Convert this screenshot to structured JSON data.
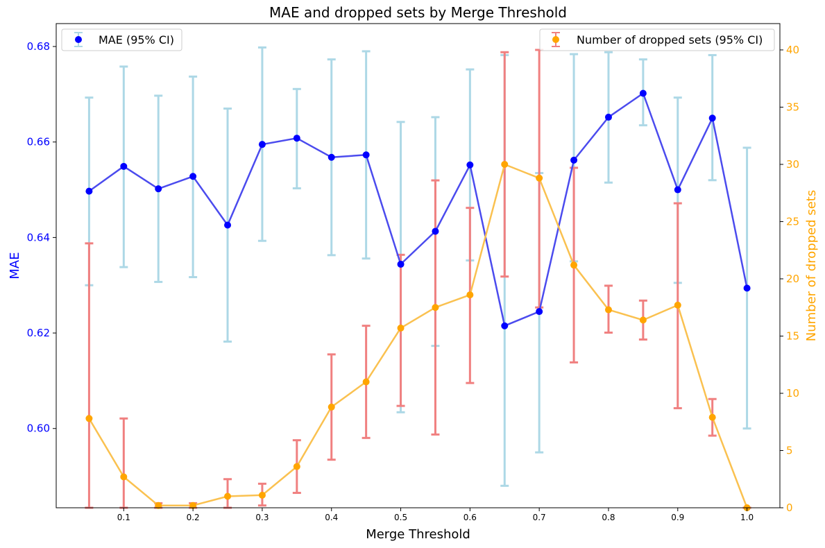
{
  "chart_data": {
    "type": "line",
    "title": "MAE and dropped sets by Merge Threshold",
    "xlabel": "Merge Threshold",
    "y_left_label": "MAE",
    "y_right_label": "Number of dropped sets",
    "x": [
      0.05,
      0.1,
      0.15,
      0.2,
      0.25,
      0.3,
      0.35,
      0.4,
      0.45,
      0.5,
      0.55,
      0.6,
      0.65,
      0.7,
      0.75,
      0.8,
      0.85,
      0.9,
      0.95,
      1.0
    ],
    "x_ticks": [
      "0.1",
      "0.2",
      "0.3",
      "0.4",
      "0.5",
      "0.6",
      "0.7",
      "0.8",
      "0.9",
      "1.0"
    ],
    "x_tick_values": [
      0.1,
      0.2,
      0.3,
      0.4,
      0.5,
      0.6,
      0.7,
      0.8,
      0.9,
      1.0
    ],
    "xlim": [
      0.0025,
      1.0475
    ],
    "y_left_ticks": [
      "0.60",
      "0.62",
      "0.64",
      "0.66",
      "0.68"
    ],
    "y_left_tick_values": [
      0.6,
      0.62,
      0.64,
      0.66,
      0.68
    ],
    "y_left_lim": [
      0.5834,
      0.6848
    ],
    "y_right_ticks": [
      "0",
      "5",
      "10",
      "15",
      "20",
      "25",
      "30",
      "35",
      "40"
    ],
    "y_right_tick_values": [
      0,
      5,
      10,
      15,
      20,
      25,
      30,
      35,
      40
    ],
    "y_right_lim": [
      0,
      42.3
    ],
    "series": [
      {
        "name": "MAE (95% CI)",
        "axis": "left",
        "line_color": "#4b4bee",
        "marker_color": "#0000ff",
        "errorbar_color": "#add8e6",
        "values": [
          0.6497,
          0.6549,
          0.6502,
          0.6528,
          0.6426,
          0.6595,
          0.6608,
          0.6568,
          0.6573,
          0.6344,
          0.6413,
          0.6552,
          0.6215,
          0.6245,
          0.6562,
          0.6652,
          0.6702,
          0.65,
          0.665,
          0.6294
        ],
        "ci_low": [
          0.63,
          0.6338,
          0.6307,
          0.6317,
          0.6182,
          0.6393,
          0.6503,
          0.6363,
          0.6356,
          0.6034,
          0.6173,
          0.6352,
          0.588,
          0.595,
          0.635,
          0.6515,
          0.6635,
          0.6305,
          0.652,
          0.6
        ],
        "ci_high": [
          0.6693,
          0.6758,
          0.6697,
          0.6737,
          0.667,
          0.6798,
          0.6711,
          0.6773,
          0.679,
          0.6642,
          0.6652,
          0.6752,
          0.6782,
          0.6535,
          0.6784,
          0.6788,
          0.6773,
          0.6693,
          0.6782,
          0.6588
        ]
      },
      {
        "name": "Number of dropped sets (95% CI)",
        "axis": "right",
        "line_color": "#fac150",
        "marker_color": "#ffa500",
        "errorbar_color": "#f08080",
        "values": [
          7.8,
          2.7,
          0.2,
          0.2,
          1.0,
          1.1,
          3.6,
          8.8,
          11.0,
          15.7,
          17.5,
          18.6,
          30.0,
          28.8,
          21.2,
          17.3,
          16.4,
          17.7,
          7.9,
          0.0
        ],
        "ci_low": [
          0.0,
          0.0,
          0.0,
          0.0,
          0.0,
          0.2,
          1.3,
          4.2,
          6.1,
          8.9,
          6.4,
          10.9,
          20.2,
          17.5,
          12.7,
          15.3,
          14.7,
          8.7,
          6.3,
          0.0
        ],
        "ci_high": [
          23.1,
          7.8,
          0.4,
          0.4,
          2.5,
          2.1,
          5.9,
          13.4,
          15.9,
          22.1,
          28.6,
          26.2,
          39.8,
          40.0,
          29.7,
          19.4,
          18.1,
          26.6,
          9.5,
          0.0
        ]
      }
    ],
    "legend": [
      {
        "label": "MAE (95% CI)",
        "position": "upper-left"
      },
      {
        "label": "Number of dropped sets (95% CI)",
        "position": "upper-right"
      }
    ]
  }
}
